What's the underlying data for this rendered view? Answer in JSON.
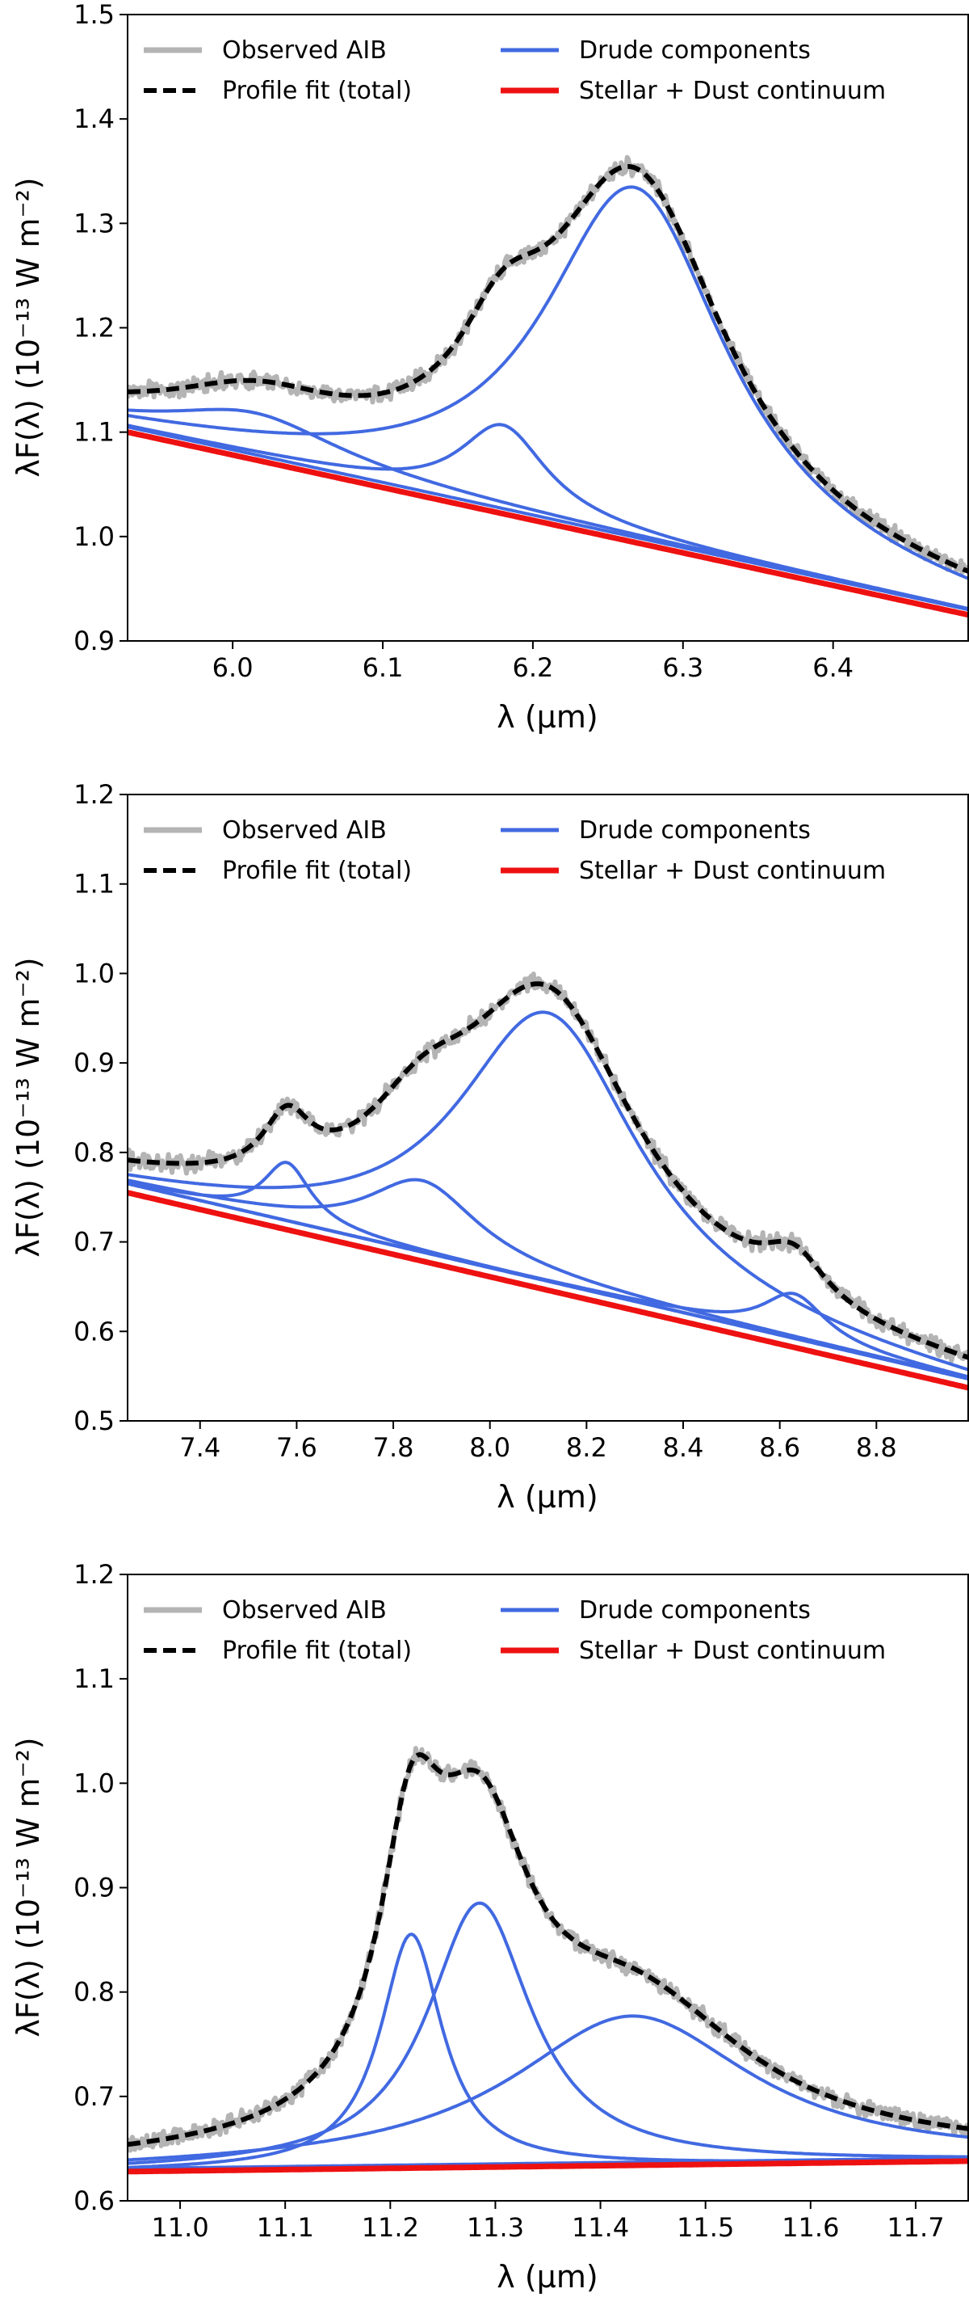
{
  "legend": {
    "observed": "Observed AIB",
    "fit": "Profile fit (total)",
    "drude": "Drude components",
    "continuum": "Stellar + Dust continuum"
  },
  "colors": {
    "observed": "#b4b4b4",
    "fit": "#000000",
    "drude": "#4169e1",
    "continuum": "#ee1111"
  },
  "chart_data": [
    {
      "type": "line",
      "title": "",
      "xlabel": "λ (μm)",
      "ylabel": "λF(λ) (10⁻¹³ W m⁻²)",
      "xlim": [
        5.93,
        6.49
      ],
      "ylim": [
        0.9,
        1.5
      ],
      "xticks": [
        6.0,
        6.1,
        6.2,
        6.3,
        6.4
      ],
      "xtick_labels": [
        "6.0",
        "6.1",
        "6.2",
        "6.3",
        "6.4"
      ],
      "yticks": [
        0.9,
        1.0,
        1.1,
        1.2,
        1.3,
        1.4,
        1.5
      ],
      "ytick_labels": [
        "0.9",
        "1.0",
        "1.1",
        "1.2",
        "1.3",
        "1.4",
        "1.5"
      ],
      "legend_position": "top",
      "continuum": {
        "x0": 5.93,
        "y0": 1.1,
        "x1": 6.49,
        "y1": 0.925
      },
      "components": [
        {
          "center": 6.015,
          "peak": 0.04,
          "hwhm": 0.07,
          "base": "blue"
        },
        {
          "center": 6.18,
          "peak": 0.08,
          "hwhm": 0.035,
          "base": "blue"
        },
        {
          "center": 6.268,
          "peak": 0.34,
          "hwhm": 0.075,
          "base": "red"
        }
      ],
      "baseline_offset": 0.005,
      "noise": 0.01
    },
    {
      "type": "line",
      "title": "",
      "xlabel": "λ (μm)",
      "ylabel": "λF(λ) (10⁻¹³ W m⁻²)",
      "xlim": [
        7.25,
        8.99
      ],
      "ylim": [
        0.5,
        1.2
      ],
      "xticks": [
        7.4,
        7.6,
        7.8,
        8.0,
        8.2,
        8.4,
        8.6,
        8.8
      ],
      "xtick_labels": [
        "7.4",
        "7.6",
        "7.8",
        "8.0",
        "8.2",
        "8.4",
        "8.6",
        "8.8"
      ],
      "yticks": [
        0.5,
        0.6,
        0.7,
        0.8,
        0.9,
        1.0,
        1.1,
        1.2
      ],
      "ytick_labels": [
        "0.5",
        "0.6",
        "0.7",
        "0.8",
        "0.9",
        "1.0",
        "1.1",
        "1.2"
      ],
      "legend_position": "top",
      "continuum": {
        "x0": 7.25,
        "y0": 0.755,
        "x1": 8.99,
        "y1": 0.537
      },
      "components": [
        {
          "center": 7.58,
          "peak": 0.065,
          "hwhm": 0.06,
          "base": "blue"
        },
        {
          "center": 7.86,
          "peak": 0.08,
          "hwhm": 0.14,
          "base": "blue"
        },
        {
          "center": 8.63,
          "peak": 0.05,
          "hwhm": 0.08,
          "base": "blue"
        },
        {
          "center": 8.12,
          "peak": 0.31,
          "hwhm": 0.23,
          "base": "red"
        }
      ],
      "baseline_offset": 0.01,
      "noise": 0.012
    },
    {
      "type": "line",
      "title": "",
      "xlabel": "λ (μm)",
      "ylabel": "λF(λ) (10⁻¹³ W m⁻²)",
      "xlim": [
        10.95,
        11.75
      ],
      "ylim": [
        0.6,
        1.2
      ],
      "xticks": [
        11.0,
        11.1,
        11.2,
        11.3,
        11.4,
        11.5,
        11.6,
        11.7
      ],
      "xtick_labels": [
        "11.0",
        "11.1",
        "11.2",
        "11.3",
        "11.4",
        "11.5",
        "11.6",
        "11.7"
      ],
      "yticks": [
        0.6,
        0.7,
        0.8,
        0.9,
        1.0,
        1.1,
        1.2
      ],
      "ytick_labels": [
        "0.6",
        "0.7",
        "0.8",
        "0.9",
        "1.0",
        "1.1",
        "1.2"
      ],
      "legend_position": "top",
      "continuum": {
        "x0": 10.95,
        "y0": 0.628,
        "x1": 11.75,
        "y1": 0.638
      },
      "components": [
        {
          "center": 11.22,
          "peak": 0.224,
          "hwhm": 0.036,
          "base": "red"
        },
        {
          "center": 11.285,
          "peak": 0.253,
          "hwhm": 0.06,
          "base": "red"
        },
        {
          "center": 11.43,
          "peak": 0.143,
          "hwhm": 0.14,
          "base": "red"
        }
      ],
      "baseline_offset": 0.003,
      "noise": 0.01
    }
  ]
}
